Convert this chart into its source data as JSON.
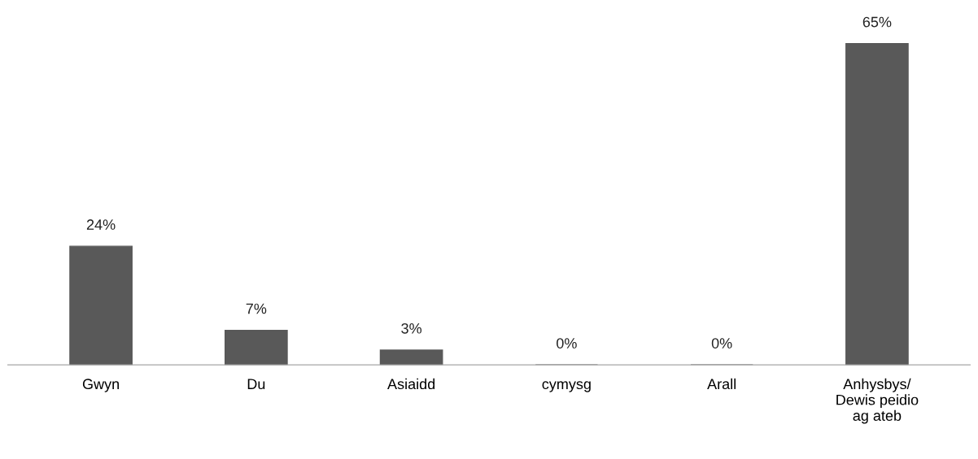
{
  "chart_data": {
    "type": "bar",
    "categories": [
      "Gwyn",
      "Du",
      "Asiaidd",
      "cymysg",
      "Arall",
      "Anhysbys/\nDewis peidio\nag ateb"
    ],
    "values": [
      24,
      7,
      3,
      0,
      0,
      65
    ],
    "value_labels": [
      "24%",
      "7%",
      "3%",
      "0%",
      "0%",
      "65%"
    ],
    "color": "#595959",
    "grid": false,
    "legend": false
  }
}
